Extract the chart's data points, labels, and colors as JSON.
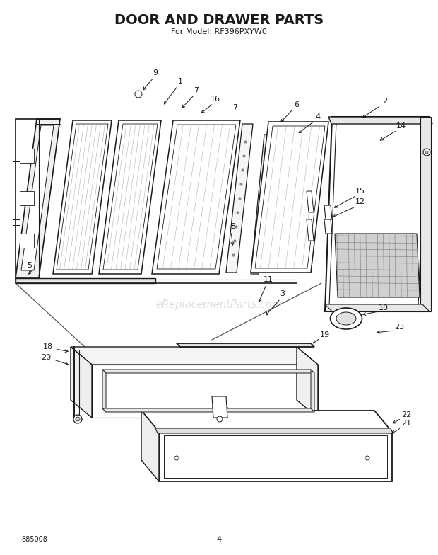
{
  "title": "DOOR AND DRAWER PARTS",
  "subtitle": "For Model: RF396PXYW0",
  "page_number": "4",
  "doc_number": "885008",
  "bg_color": "#ffffff",
  "line_color": "#1a1a1a",
  "watermark": "eReplacementParts.com"
}
